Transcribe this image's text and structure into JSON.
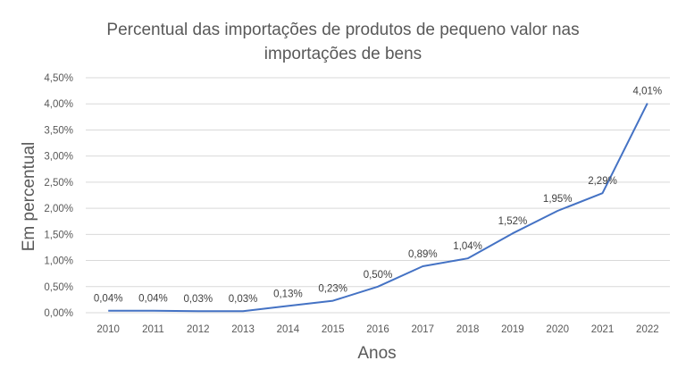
{
  "chart_data": {
    "type": "line",
    "title": "Percentual das importações de  produtos de pequeno valor nas importações de bens",
    "title_lines": [
      "Percentual das importações de  produtos de pequeno valor nas",
      "importações de bens"
    ],
    "xlabel": "Anos",
    "ylabel": "Em percentual",
    "categories": [
      "2010",
      "2011",
      "2012",
      "2013",
      "2014",
      "2015",
      "2016",
      "2017",
      "2018",
      "2019",
      "2020",
      "2021",
      "2022"
    ],
    "series": [
      {
        "values": [
          0.04,
          0.04,
          0.03,
          0.03,
          0.13,
          0.23,
          0.5,
          0.89,
          1.04,
          1.52,
          1.95,
          2.29,
          4.01
        ],
        "labels": [
          "0,04%",
          "0,04%",
          "0,03%",
          "0,03%",
          "0,13%",
          "0,23%",
          "0,50%",
          "0,89%",
          "1,04%",
          "1,52%",
          "1,95%",
          "2,29%",
          "4,01%"
        ]
      }
    ],
    "ylim": [
      0,
      4.5
    ],
    "yticks": [
      0,
      0.5,
      1.0,
      1.5,
      2.0,
      2.5,
      3.0,
      3.5,
      4.0,
      4.5
    ],
    "ytick_labels": [
      "0,00%",
      "0,50%",
      "1,00%",
      "1,50%",
      "2,00%",
      "2,50%",
      "3,00%",
      "3,50%",
      "4,00%",
      "4,50%"
    ],
    "grid": true,
    "legend": "none",
    "colors": {
      "line": "#4472C4",
      "grid": "#D9D9D9",
      "text": "#595959"
    }
  }
}
